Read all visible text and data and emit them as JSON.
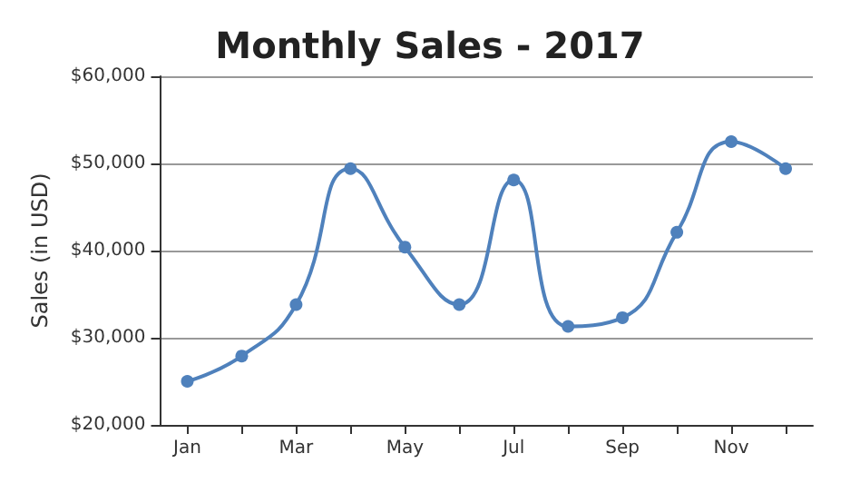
{
  "chart_data": {
    "type": "line",
    "title": "Monthly Sales - 2017",
    "ylabel": "Sales (in USD)",
    "categories": [
      "Jan",
      null,
      "Mar",
      null,
      "May",
      null,
      "Jul",
      null,
      "Sep",
      null,
      "Nov",
      null
    ],
    "series": [
      {
        "color": "#4f81bc",
        "values": [
          25000,
          27900,
          33800,
          49400,
          40400,
          33800,
          48100,
          31300,
          32300,
          42100,
          52500,
          49400
        ]
      }
    ],
    "ylim": [
      20000,
      60000
    ],
    "yticks": [
      {
        "value": 20000,
        "label": "$20,000"
      },
      {
        "value": 30000,
        "label": "$30,000"
      },
      {
        "value": 40000,
        "label": "$40,000"
      },
      {
        "value": 50000,
        "label": "$50,000"
      },
      {
        "value": 60000,
        "label": "$60,000"
      }
    ],
    "grid": "y",
    "marker": "circle",
    "line_style": "solid"
  }
}
